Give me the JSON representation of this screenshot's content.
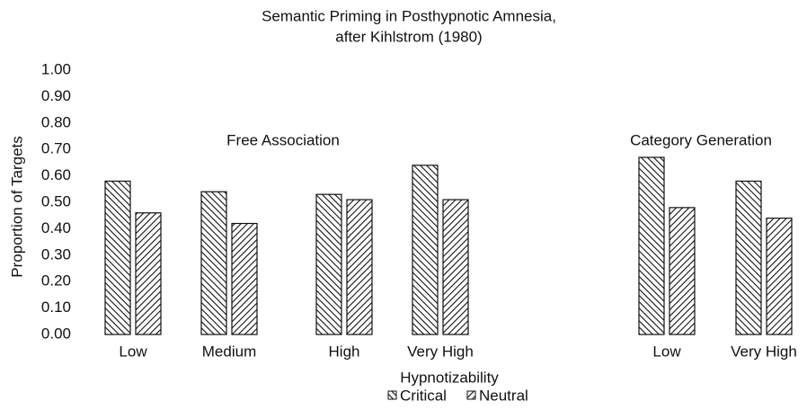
{
  "chart_data": {
    "type": "bar",
    "title_lines": [
      "Semantic Priming in Posthypnotic Amnesia,",
      "after Kihlstrom (1980)"
    ],
    "y_label": "Proportion of Targets",
    "x_label": "Hypnotizability",
    "legend": [
      "Critical",
      "Neutral"
    ],
    "ylim": [
      0,
      1
    ],
    "yticks": [
      {
        "value": 0,
        "label": "0.00"
      },
      {
        "value": 0.1,
        "label": "0.10"
      },
      {
        "value": 0.2,
        "label": "0.20"
      },
      {
        "value": 0.3,
        "label": "0.30"
      },
      {
        "value": 0.4,
        "label": "0.40"
      },
      {
        "value": 0.5,
        "label": "0.50"
      },
      {
        "value": 0.6,
        "label": "0.60"
      },
      {
        "value": 0.7,
        "label": "0.70"
      },
      {
        "value": 0.8,
        "label": "0.80"
      },
      {
        "value": 0.9,
        "label": "0.90"
      },
      {
        "value": 1,
        "label": "1.00"
      }
    ],
    "panels": [
      {
        "title": "Free Association",
        "categories": [
          "Low",
          "Medium",
          "High",
          "Very High"
        ],
        "series": [
          {
            "values": [
              0.58,
              0.54,
              0.53,
              0.64
            ]
          },
          {
            "values": [
              0.46,
              0.42,
              0.51,
              0.51
            ]
          }
        ]
      },
      {
        "title": "Category Generation",
        "categories": [
          "Low",
          "Very High"
        ],
        "series": [
          {
            "values": [
              0.67,
              0.58
            ]
          },
          {
            "values": [
              0.48,
              0.44
            ]
          }
        ]
      }
    ]
  }
}
